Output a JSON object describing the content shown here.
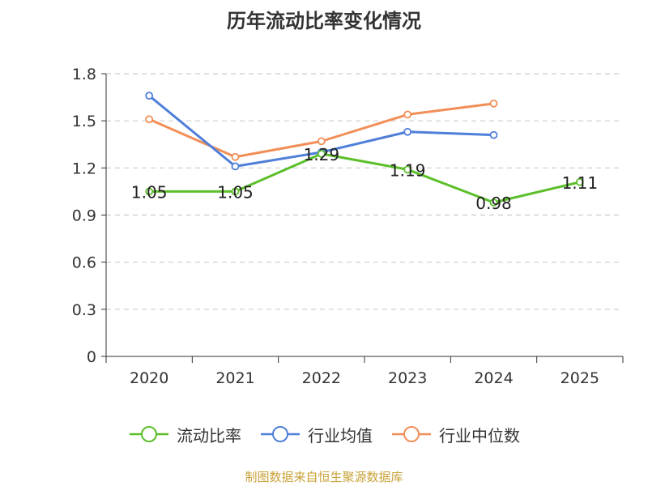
{
  "chart_data": {
    "type": "line",
    "title": "历年流动比率变化情况",
    "categories": [
      "2020",
      "2021",
      "2022",
      "2023",
      "2024",
      "2025"
    ],
    "ylim": [
      0,
      1.8
    ],
    "yticks": [
      "0",
      "0.3",
      "0.6",
      "0.9",
      "1.2",
      "1.5",
      "1.8"
    ],
    "grid": true,
    "legend_position": "bottom",
    "series": [
      {
        "name": "流动比率",
        "color": "#5cbf2a",
        "values": [
          1.05,
          1.05,
          1.29,
          1.19,
          0.98,
          1.11
        ],
        "labels": [
          "1.05",
          "1.05",
          "1.29",
          "1.19",
          "0.98",
          "1.11"
        ]
      },
      {
        "name": "行业均值",
        "color": "#4f7fd9",
        "values": [
          1.66,
          1.21,
          1.3,
          1.43,
          1.41,
          null
        ]
      },
      {
        "name": "行业中位数",
        "color": "#f28e57",
        "values": [
          1.51,
          1.27,
          1.37,
          1.54,
          1.61,
          null
        ]
      }
    ]
  },
  "footer": {
    "source": "制图数据来自恒生聚源数据库"
  }
}
